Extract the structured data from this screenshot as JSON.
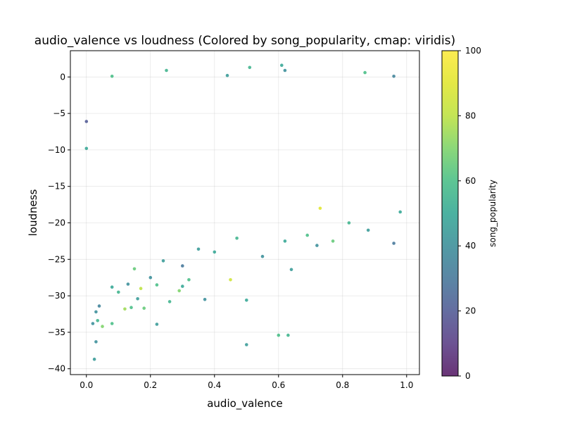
{
  "chart_data": {
    "type": "scatter",
    "title": "audio_valence vs loudness (Colored by song_popularity, cmap: viridis)",
    "xlabel": "audio_valence",
    "ylabel": "loudness",
    "xlim": [
      -0.05,
      1.04
    ],
    "ylim": [
      -40.8,
      3.6
    ],
    "xticks": [
      0.0,
      0.2,
      0.4,
      0.6,
      0.8,
      1.0
    ],
    "xtick_labels": [
      "0.0",
      "0.2",
      "0.4",
      "0.6",
      "0.8",
      "1.0"
    ],
    "yticks": [
      0,
      -5,
      -10,
      -15,
      -20,
      -25,
      -30,
      -35,
      -40
    ],
    "ytick_labels": [
      "0",
      "−5",
      "−10",
      "−15",
      "−20",
      "−25",
      "−30",
      "−35",
      "−40"
    ],
    "grid": true,
    "colormap": "viridis",
    "colorbar": {
      "label": "song_popularity",
      "range": [
        0,
        100
      ],
      "ticks": [
        0,
        20,
        40,
        60,
        80,
        100
      ],
      "tick_labels": [
        "0",
        "20",
        "40",
        "60",
        "80",
        "100"
      ]
    },
    "marker_alpha": 0.8,
    "series": [
      {
        "values": [
          {
            "x": 0.0,
            "y": -6.1,
            "c": 20
          },
          {
            "x": 0.0,
            "y": -9.8,
            "c": 50
          },
          {
            "x": 0.025,
            "y": -38.7,
            "c": 45
          },
          {
            "x": 0.03,
            "y": -36.3,
            "c": 40
          },
          {
            "x": 0.02,
            "y": -33.8,
            "c": 40
          },
          {
            "x": 0.035,
            "y": -33.4,
            "c": 55
          },
          {
            "x": 0.05,
            "y": -34.2,
            "c": 70
          },
          {
            "x": 0.08,
            "y": -33.8,
            "c": 60
          },
          {
            "x": 0.03,
            "y": -32.2,
            "c": 40
          },
          {
            "x": 0.04,
            "y": -31.4,
            "c": 35
          },
          {
            "x": 0.12,
            "y": -31.8,
            "c": 75
          },
          {
            "x": 0.14,
            "y": -31.6,
            "c": 60
          },
          {
            "x": 0.18,
            "y": -31.7,
            "c": 65
          },
          {
            "x": 0.16,
            "y": -30.4,
            "c": 45
          },
          {
            "x": 0.1,
            "y": -29.5,
            "c": 55
          },
          {
            "x": 0.08,
            "y": -28.8,
            "c": 50
          },
          {
            "x": 0.13,
            "y": -28.4,
            "c": 40
          },
          {
            "x": 0.17,
            "y": -29.0,
            "c": 80
          },
          {
            "x": 0.22,
            "y": -28.5,
            "c": 60
          },
          {
            "x": 0.26,
            "y": -30.8,
            "c": 55
          },
          {
            "x": 0.22,
            "y": -33.9,
            "c": 45
          },
          {
            "x": 0.3,
            "y": -28.7,
            "c": 50
          },
          {
            "x": 0.32,
            "y": -27.8,
            "c": 60
          },
          {
            "x": 0.29,
            "y": -29.3,
            "c": 70
          },
          {
            "x": 0.37,
            "y": -30.5,
            "c": 40
          },
          {
            "x": 0.45,
            "y": -27.8,
            "c": 85
          },
          {
            "x": 0.5,
            "y": -30.6,
            "c": 50
          },
          {
            "x": 0.5,
            "y": -36.7,
            "c": 45
          },
          {
            "x": 0.6,
            "y": -35.4,
            "c": 60
          },
          {
            "x": 0.63,
            "y": -35.4,
            "c": 55
          },
          {
            "x": 0.64,
            "y": -26.4,
            "c": 45
          },
          {
            "x": 0.25,
            "y": 0.9,
            "c": 55
          },
          {
            "x": 0.08,
            "y": 0.1,
            "c": 60
          },
          {
            "x": 0.51,
            "y": 1.3,
            "c": 55
          },
          {
            "x": 0.61,
            "y": 1.6,
            "c": 50
          },
          {
            "x": 0.62,
            "y": 0.9,
            "c": 40
          },
          {
            "x": 0.44,
            "y": 0.2,
            "c": 45
          },
          {
            "x": 0.87,
            "y": 0.6,
            "c": 60
          },
          {
            "x": 0.96,
            "y": 0.1,
            "c": 35
          },
          {
            "x": 0.73,
            "y": -18.0,
            "c": 90
          },
          {
            "x": 0.69,
            "y": -21.7,
            "c": 60
          },
          {
            "x": 0.72,
            "y": -23.1,
            "c": 40
          },
          {
            "x": 0.77,
            "y": -22.5,
            "c": 65
          },
          {
            "x": 0.82,
            "y": -20.0,
            "c": 55
          },
          {
            "x": 0.88,
            "y": -21.0,
            "c": 45
          },
          {
            "x": 0.96,
            "y": -22.8,
            "c": 30
          },
          {
            "x": 0.98,
            "y": -18.5,
            "c": 50
          },
          {
            "x": 0.4,
            "y": -24.0,
            "c": 50
          },
          {
            "x": 0.35,
            "y": -23.6,
            "c": 45
          },
          {
            "x": 0.55,
            "y": -24.6,
            "c": 40
          },
          {
            "x": 0.47,
            "y": -22.1,
            "c": 55
          },
          {
            "x": 0.62,
            "y": -22.5,
            "c": 50
          },
          {
            "x": 0.3,
            "y": -25.9,
            "c": 30
          },
          {
            "x": 0.24,
            "y": -25.2,
            "c": 45
          },
          {
            "x": 0.2,
            "y": -27.5,
            "c": 40
          },
          {
            "x": 0.15,
            "y": -26.3,
            "c": 65
          }
        ]
      }
    ]
  }
}
